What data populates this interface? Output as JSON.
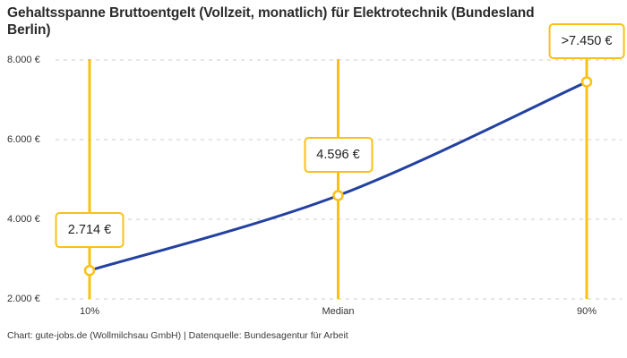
{
  "title": "Gehaltsspanne Bruttoentgelt (Vollzeit, monatlich) für Elektrotechnik (Bundesland Berlin)",
  "footer": "Chart: gute-jobs.de (Wollmilchsau GmbH) | Datenquelle: Bundesagentur für Arbeit",
  "colors": {
    "accent_yellow": "#f9c116",
    "line_blue": "#2341a0",
    "grid_gray": "#cbcbcb",
    "title_text": "#2b2b2b",
    "axis_text": "#333333"
  },
  "chart_data": {
    "type": "line",
    "title": "Gehaltsspanne Bruttoentgelt (Vollzeit, monatlich) für Elektrotechnik (Bundesland Berlin)",
    "categories": [
      "10%",
      "Median",
      "90%"
    ],
    "values": [
      2714,
      4596,
      7450
    ],
    "point_labels": [
      "2.714 €",
      "4.596 €",
      ">7.450 €"
    ],
    "y_ticks": [
      {
        "value": 2000,
        "label": "2.000 €"
      },
      {
        "value": 4000,
        "label": "4.000 €"
      },
      {
        "value": 6000,
        "label": "6.000 €"
      },
      {
        "value": 8000,
        "label": "8.000 €"
      }
    ],
    "ylim": [
      2000,
      8000
    ],
    "xlabel": "",
    "ylabel": "",
    "grid": "horizontal-dashed",
    "legend": "none",
    "source": "Bundesagentur für Arbeit"
  }
}
